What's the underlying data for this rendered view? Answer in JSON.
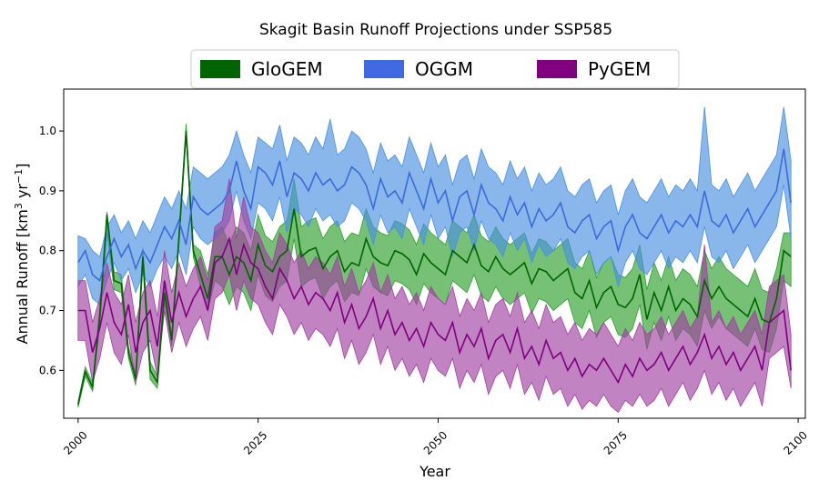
{
  "chart_data": {
    "type": "area",
    "title": "Skagit Basin Runoff Projections under SSP585",
    "xlabel": "Year",
    "ylabel": {
      "base": "Annual Runoff [km",
      "sup1": "3",
      "mid": " yr",
      "sup2": "−1",
      "end": "]"
    },
    "xlim": [
      1998,
      2101
    ],
    "ylim": [
      0.52,
      1.07
    ],
    "xticks": [
      2000,
      2025,
      2050,
      2075,
      2100
    ],
    "yticks": [
      0.6,
      0.7,
      0.8,
      0.9,
      1.0
    ],
    "ytick_labels": [
      "0.6",
      "0.7",
      "0.8",
      "0.9",
      "1.0"
    ],
    "legend_position": "top-center",
    "x": [
      2000,
      2001,
      2002,
      2003,
      2004,
      2005,
      2006,
      2007,
      2008,
      2009,
      2010,
      2011,
      2012,
      2013,
      2014,
      2015,
      2016,
      2017,
      2018,
      2019,
      2020,
      2021,
      2022,
      2023,
      2024,
      2025,
      2026,
      2027,
      2028,
      2029,
      2030,
      2031,
      2032,
      2033,
      2034,
      2035,
      2036,
      2037,
      2038,
      2039,
      2040,
      2041,
      2042,
      2043,
      2044,
      2045,
      2046,
      2047,
      2048,
      2049,
      2050,
      2051,
      2052,
      2053,
      2054,
      2055,
      2056,
      2057,
      2058,
      2059,
      2060,
      2061,
      2062,
      2063,
      2064,
      2065,
      2066,
      2067,
      2068,
      2069,
      2070,
      2071,
      2072,
      2073,
      2074,
      2075,
      2076,
      2077,
      2078,
      2079,
      2080,
      2081,
      2082,
      2083,
      2084,
      2085,
      2086,
      2087,
      2088,
      2089,
      2090,
      2091,
      2092,
      2093,
      2094,
      2095,
      2096,
      2097,
      2098,
      2099
    ],
    "series": [
      {
        "name": "GloGEM",
        "color": "#006400",
        "fill": "#2ca02c",
        "mean": [
          0.543,
          0.598,
          0.572,
          0.69,
          0.86,
          0.75,
          0.745,
          0.63,
          0.585,
          0.79,
          0.6,
          0.58,
          0.73,
          0.65,
          0.82,
          1.0,
          0.8,
          0.76,
          0.72,
          0.79,
          0.79,
          0.76,
          0.79,
          0.78,
          0.75,
          0.81,
          0.775,
          0.765,
          0.79,
          0.8,
          0.87,
          0.79,
          0.8,
          0.805,
          0.77,
          0.79,
          0.8,
          0.765,
          0.78,
          0.775,
          0.82,
          0.79,
          0.78,
          0.775,
          0.8,
          0.795,
          0.785,
          0.76,
          0.795,
          0.78,
          0.77,
          0.76,
          0.8,
          0.79,
          0.78,
          0.81,
          0.775,
          0.765,
          0.79,
          0.77,
          0.76,
          0.77,
          0.78,
          0.745,
          0.77,
          0.765,
          0.75,
          0.76,
          0.77,
          0.73,
          0.72,
          0.75,
          0.705,
          0.73,
          0.74,
          0.71,
          0.705,
          0.72,
          0.76,
          0.685,
          0.73,
          0.7,
          0.74,
          0.7,
          0.72,
          0.71,
          0.69,
          0.75,
          0.72,
          0.74,
          0.72,
          0.71,
          0.7,
          0.69,
          0.72,
          0.685,
          0.68,
          0.72,
          0.8,
          0.79
        ],
        "lower": [
          0.538,
          0.59,
          0.565,
          0.675,
          0.83,
          0.735,
          0.73,
          0.62,
          0.575,
          0.775,
          0.585,
          0.57,
          0.715,
          0.64,
          0.81,
          0.99,
          0.79,
          0.74,
          0.7,
          0.75,
          0.74,
          0.71,
          0.74,
          0.73,
          0.7,
          0.76,
          0.725,
          0.715,
          0.74,
          0.75,
          0.82,
          0.74,
          0.75,
          0.755,
          0.72,
          0.74,
          0.75,
          0.715,
          0.73,
          0.725,
          0.77,
          0.74,
          0.73,
          0.725,
          0.75,
          0.745,
          0.735,
          0.71,
          0.745,
          0.73,
          0.72,
          0.71,
          0.75,
          0.74,
          0.73,
          0.76,
          0.725,
          0.715,
          0.74,
          0.72,
          0.71,
          0.72,
          0.73,
          0.695,
          0.72,
          0.715,
          0.7,
          0.71,
          0.72,
          0.68,
          0.67,
          0.7,
          0.655,
          0.68,
          0.69,
          0.66,
          0.655,
          0.67,
          0.71,
          0.635,
          0.68,
          0.65,
          0.69,
          0.65,
          0.67,
          0.66,
          0.64,
          0.7,
          0.67,
          0.69,
          0.67,
          0.66,
          0.65,
          0.64,
          0.67,
          0.635,
          0.63,
          0.67,
          0.75,
          0.74
        ],
        "upper": [
          0.548,
          0.606,
          0.579,
          0.705,
          0.865,
          0.765,
          0.76,
          0.64,
          0.595,
          0.805,
          0.615,
          0.59,
          0.745,
          0.66,
          0.83,
          1.012,
          0.81,
          0.8,
          0.76,
          0.83,
          0.84,
          0.81,
          0.84,
          0.83,
          0.8,
          0.86,
          0.825,
          0.815,
          0.84,
          0.85,
          0.92,
          0.84,
          0.85,
          0.855,
          0.82,
          0.84,
          0.85,
          0.815,
          0.83,
          0.825,
          0.87,
          0.84,
          0.83,
          0.825,
          0.85,
          0.845,
          0.835,
          0.81,
          0.845,
          0.83,
          0.82,
          0.81,
          0.85,
          0.84,
          0.83,
          0.86,
          0.825,
          0.815,
          0.84,
          0.82,
          0.81,
          0.82,
          0.83,
          0.795,
          0.82,
          0.815,
          0.8,
          0.81,
          0.82,
          0.78,
          0.77,
          0.8,
          0.755,
          0.78,
          0.79,
          0.76,
          0.755,
          0.77,
          0.81,
          0.735,
          0.78,
          0.75,
          0.79,
          0.75,
          0.77,
          0.76,
          0.74,
          0.8,
          0.77,
          0.79,
          0.77,
          0.76,
          0.75,
          0.74,
          0.77,
          0.735,
          0.73,
          0.77,
          0.83,
          0.83
        ]
      },
      {
        "name": "OGGM",
        "color": "#3a6bd9",
        "fill": "#4a90e2",
        "mean": [
          0.78,
          0.8,
          0.76,
          0.75,
          0.79,
          0.82,
          0.79,
          0.81,
          0.77,
          0.8,
          0.78,
          0.81,
          0.84,
          0.82,
          0.85,
          0.81,
          0.89,
          0.87,
          0.86,
          0.87,
          0.88,
          0.9,
          0.95,
          0.9,
          0.87,
          0.94,
          0.93,
          0.91,
          0.95,
          0.89,
          0.93,
          0.92,
          0.9,
          0.93,
          0.91,
          0.92,
          0.9,
          0.91,
          0.94,
          0.93,
          0.91,
          0.87,
          0.92,
          0.89,
          0.9,
          0.88,
          0.93,
          0.9,
          0.87,
          0.92,
          0.88,
          0.9,
          0.85,
          0.89,
          0.9,
          0.86,
          0.91,
          0.88,
          0.87,
          0.85,
          0.89,
          0.86,
          0.88,
          0.84,
          0.87,
          0.85,
          0.86,
          0.88,
          0.84,
          0.83,
          0.85,
          0.86,
          0.82,
          0.84,
          0.85,
          0.8,
          0.84,
          0.86,
          0.83,
          0.82,
          0.84,
          0.86,
          0.83,
          0.85,
          0.84,
          0.86,
          0.84,
          0.9,
          0.85,
          0.84,
          0.86,
          0.83,
          0.85,
          0.87,
          0.84,
          0.86,
          0.88,
          0.9,
          0.97,
          0.88
        ],
        "lower": [
          0.74,
          0.76,
          0.72,
          0.71,
          0.75,
          0.78,
          0.75,
          0.77,
          0.73,
          0.76,
          0.74,
          0.77,
          0.79,
          0.77,
          0.8,
          0.76,
          0.84,
          0.82,
          0.81,
          0.82,
          0.83,
          0.85,
          0.9,
          0.85,
          0.82,
          0.88,
          0.87,
          0.85,
          0.89,
          0.83,
          0.87,
          0.86,
          0.84,
          0.87,
          0.85,
          0.86,
          0.84,
          0.85,
          0.88,
          0.87,
          0.85,
          0.81,
          0.86,
          0.83,
          0.84,
          0.82,
          0.87,
          0.84,
          0.81,
          0.86,
          0.82,
          0.84,
          0.79,
          0.83,
          0.84,
          0.8,
          0.85,
          0.82,
          0.81,
          0.79,
          0.83,
          0.8,
          0.82,
          0.78,
          0.81,
          0.79,
          0.8,
          0.82,
          0.78,
          0.77,
          0.79,
          0.8,
          0.76,
          0.78,
          0.79,
          0.74,
          0.78,
          0.8,
          0.77,
          0.76,
          0.78,
          0.8,
          0.77,
          0.79,
          0.78,
          0.8,
          0.78,
          0.84,
          0.79,
          0.78,
          0.8,
          0.77,
          0.79,
          0.81,
          0.78,
          0.8,
          0.82,
          0.84,
          0.91,
          0.82
        ],
        "upper": [
          0.825,
          0.82,
          0.8,
          0.79,
          0.84,
          0.86,
          0.83,
          0.85,
          0.82,
          0.85,
          0.83,
          0.86,
          0.89,
          0.87,
          0.9,
          0.87,
          0.94,
          0.93,
          0.92,
          0.93,
          0.94,
          0.96,
          1.0,
          0.96,
          0.93,
          0.99,
          0.98,
          0.97,
          1.01,
          0.95,
          0.99,
          0.98,
          0.96,
          0.99,
          0.97,
          1.02,
          0.96,
          0.97,
          1.0,
          0.99,
          0.97,
          0.93,
          0.98,
          0.95,
          0.96,
          0.94,
          0.99,
          0.96,
          0.93,
          0.98,
          0.94,
          0.96,
          0.91,
          0.95,
          0.96,
          0.92,
          0.97,
          0.94,
          0.93,
          0.91,
          0.95,
          0.92,
          0.94,
          0.9,
          0.93,
          0.91,
          0.92,
          0.94,
          0.9,
          0.89,
          0.91,
          0.92,
          0.88,
          0.9,
          0.91,
          0.86,
          0.9,
          0.92,
          0.89,
          0.88,
          0.9,
          0.92,
          0.89,
          0.91,
          0.9,
          0.92,
          0.9,
          1.04,
          0.91,
          0.9,
          0.92,
          0.89,
          0.91,
          0.93,
          0.9,
          0.92,
          0.94,
          0.96,
          1.04,
          0.95
        ]
      },
      {
        "name": "PyGEM",
        "color": "#800080",
        "fill": "#a040a0",
        "mean": [
          0.7,
          0.7,
          0.63,
          0.67,
          0.73,
          0.68,
          0.66,
          0.71,
          0.63,
          0.68,
          0.7,
          0.64,
          0.75,
          0.68,
          0.73,
          0.69,
          0.72,
          0.74,
          0.7,
          0.78,
          0.79,
          0.82,
          0.76,
          0.81,
          0.78,
          0.77,
          0.74,
          0.72,
          0.77,
          0.75,
          0.72,
          0.74,
          0.71,
          0.73,
          0.72,
          0.7,
          0.73,
          0.68,
          0.71,
          0.67,
          0.69,
          0.72,
          0.67,
          0.7,
          0.66,
          0.68,
          0.65,
          0.67,
          0.64,
          0.68,
          0.66,
          0.65,
          0.68,
          0.63,
          0.66,
          0.64,
          0.67,
          0.62,
          0.65,
          0.66,
          0.63,
          0.67,
          0.62,
          0.64,
          0.61,
          0.65,
          0.62,
          0.63,
          0.6,
          0.62,
          0.59,
          0.61,
          0.6,
          0.62,
          0.6,
          0.58,
          0.61,
          0.59,
          0.62,
          0.6,
          0.61,
          0.63,
          0.6,
          0.62,
          0.64,
          0.61,
          0.63,
          0.66,
          0.62,
          0.64,
          0.61,
          0.63,
          0.6,
          0.62,
          0.64,
          0.6,
          0.68,
          0.69,
          0.7,
          0.6
        ],
        "lower": [
          0.65,
          0.65,
          0.58,
          0.62,
          0.68,
          0.63,
          0.61,
          0.66,
          0.58,
          0.63,
          0.65,
          0.59,
          0.7,
          0.63,
          0.68,
          0.64,
          0.67,
          0.69,
          0.65,
          0.72,
          0.73,
          0.76,
          0.7,
          0.75,
          0.72,
          0.71,
          0.68,
          0.66,
          0.71,
          0.69,
          0.66,
          0.68,
          0.65,
          0.67,
          0.66,
          0.64,
          0.67,
          0.62,
          0.65,
          0.61,
          0.63,
          0.66,
          0.61,
          0.64,
          0.6,
          0.62,
          0.59,
          0.61,
          0.58,
          0.62,
          0.6,
          0.59,
          0.62,
          0.57,
          0.6,
          0.58,
          0.61,
          0.56,
          0.59,
          0.6,
          0.57,
          0.61,
          0.56,
          0.58,
          0.55,
          0.59,
          0.56,
          0.57,
          0.54,
          0.56,
          0.535,
          0.55,
          0.54,
          0.56,
          0.54,
          0.53,
          0.55,
          0.54,
          0.56,
          0.54,
          0.55,
          0.57,
          0.54,
          0.56,
          0.58,
          0.55,
          0.57,
          0.6,
          0.56,
          0.58,
          0.55,
          0.57,
          0.54,
          0.56,
          0.58,
          0.54,
          0.62,
          0.63,
          0.64,
          0.57
        ],
        "upper": [
          0.75,
          0.75,
          0.68,
          0.72,
          0.78,
          0.73,
          0.71,
          0.76,
          0.68,
          0.73,
          0.75,
          0.69,
          0.8,
          0.73,
          0.78,
          0.74,
          0.77,
          0.79,
          0.75,
          0.84,
          0.85,
          0.92,
          0.82,
          0.89,
          0.84,
          0.83,
          0.8,
          0.78,
          0.83,
          0.81,
          0.78,
          0.8,
          0.77,
          0.79,
          0.78,
          0.76,
          0.79,
          0.74,
          0.77,
          0.73,
          0.75,
          0.78,
          0.73,
          0.76,
          0.72,
          0.74,
          0.71,
          0.73,
          0.7,
          0.74,
          0.72,
          0.71,
          0.74,
          0.69,
          0.72,
          0.7,
          0.73,
          0.68,
          0.71,
          0.72,
          0.69,
          0.73,
          0.68,
          0.7,
          0.67,
          0.71,
          0.68,
          0.69,
          0.66,
          0.68,
          0.65,
          0.67,
          0.66,
          0.68,
          0.66,
          0.64,
          0.67,
          0.65,
          0.68,
          0.66,
          0.67,
          0.69,
          0.66,
          0.68,
          0.7,
          0.67,
          0.69,
          0.81,
          0.68,
          0.7,
          0.67,
          0.69,
          0.66,
          0.68,
          0.7,
          0.66,
          0.74,
          0.75,
          0.76,
          0.66
        ]
      }
    ]
  }
}
